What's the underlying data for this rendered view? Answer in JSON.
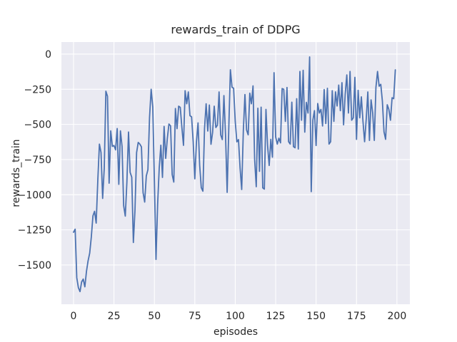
{
  "chart_data": {
    "type": "line",
    "title": "rewards_train of DDPG",
    "xlabel": "episodes",
    "ylabel": "rewards_train",
    "x_ticks": [
      0,
      25,
      50,
      75,
      100,
      125,
      150,
      175,
      200
    ],
    "y_ticks": [
      0,
      -250,
      -500,
      -750,
      -1000,
      -1250,
      -1500
    ],
    "xlim": [
      -7.5,
      208
    ],
    "ylim": [
      -1779,
      86
    ],
    "grid": true,
    "legend": false,
    "style": "seaborn-darkgrid",
    "colors": {
      "line": "#4c72b0",
      "plot_background": "#eaeaf2",
      "grid": "#ffffff",
      "text": "#262626",
      "figure_background": "#ffffff"
    },
    "x": {
      "start": 0,
      "step": 1,
      "count": 200
    },
    "series": [
      {
        "name": "rewards_train",
        "values": [
          -1267,
          -1245,
          -1590,
          -1661,
          -1689,
          -1620,
          -1600,
          -1655,
          -1545,
          -1470,
          -1415,
          -1300,
          -1150,
          -1118,
          -1202,
          -900,
          -640,
          -700,
          -1026,
          -810,
          -264,
          -300,
          -918,
          -546,
          -656,
          -650,
          -681,
          -529,
          -926,
          -546,
          -656,
          -1078,
          -1152,
          -909,
          -554,
          -841,
          -875,
          -1340,
          -1110,
          -700,
          -628,
          -640,
          -660,
          -985,
          -1052,
          -866,
          -822,
          -450,
          -250,
          -375,
          -900,
          -1460,
          -1070,
          -808,
          -648,
          -877,
          -514,
          -742,
          -600,
          -497,
          -510,
          -857,
          -910,
          -387,
          -530,
          -370,
          -379,
          -522,
          -649,
          -260,
          -353,
          -269,
          -438,
          -446,
          -624,
          -887,
          -624,
          -489,
          -789,
          -950,
          -975,
          -530,
          -353,
          -547,
          -362,
          -641,
          -557,
          -370,
          -522,
          -505,
          -269,
          -574,
          -608,
          -295,
          -574,
          -983,
          -530,
          -111,
          -235,
          -243,
          -479,
          -624,
          -608,
          -811,
          -963,
          -547,
          -287,
          -539,
          -574,
          -278,
          -353,
          -226,
          -750,
          -943,
          -385,
          -834,
          -377,
          -951,
          -960,
          -393,
          -650,
          -792,
          -606,
          -733,
          -132,
          -589,
          -640,
          -598,
          -631,
          -245,
          -250,
          -478,
          -237,
          -623,
          -640,
          -342,
          -658,
          -666,
          -317,
          -675,
          -123,
          -470,
          -115,
          -555,
          -343,
          -419,
          -20,
          -978,
          -470,
          -402,
          -650,
          -351,
          -419,
          -393,
          -511,
          -252,
          -494,
          -243,
          -640,
          -623,
          -260,
          -478,
          -268,
          -369,
          -220,
          -402,
          -203,
          -503,
          -285,
          -148,
          -419,
          -123,
          -470,
          -453,
          -165,
          -606,
          -257,
          -453,
          -304,
          -478,
          -623,
          -462,
          -269,
          -614,
          -325,
          -419,
          -614,
          -237,
          -123,
          -228,
          -215,
          -334,
          -553,
          -606,
          -360,
          -393,
          -470,
          -310,
          -317,
          -112
        ]
      }
    ]
  }
}
